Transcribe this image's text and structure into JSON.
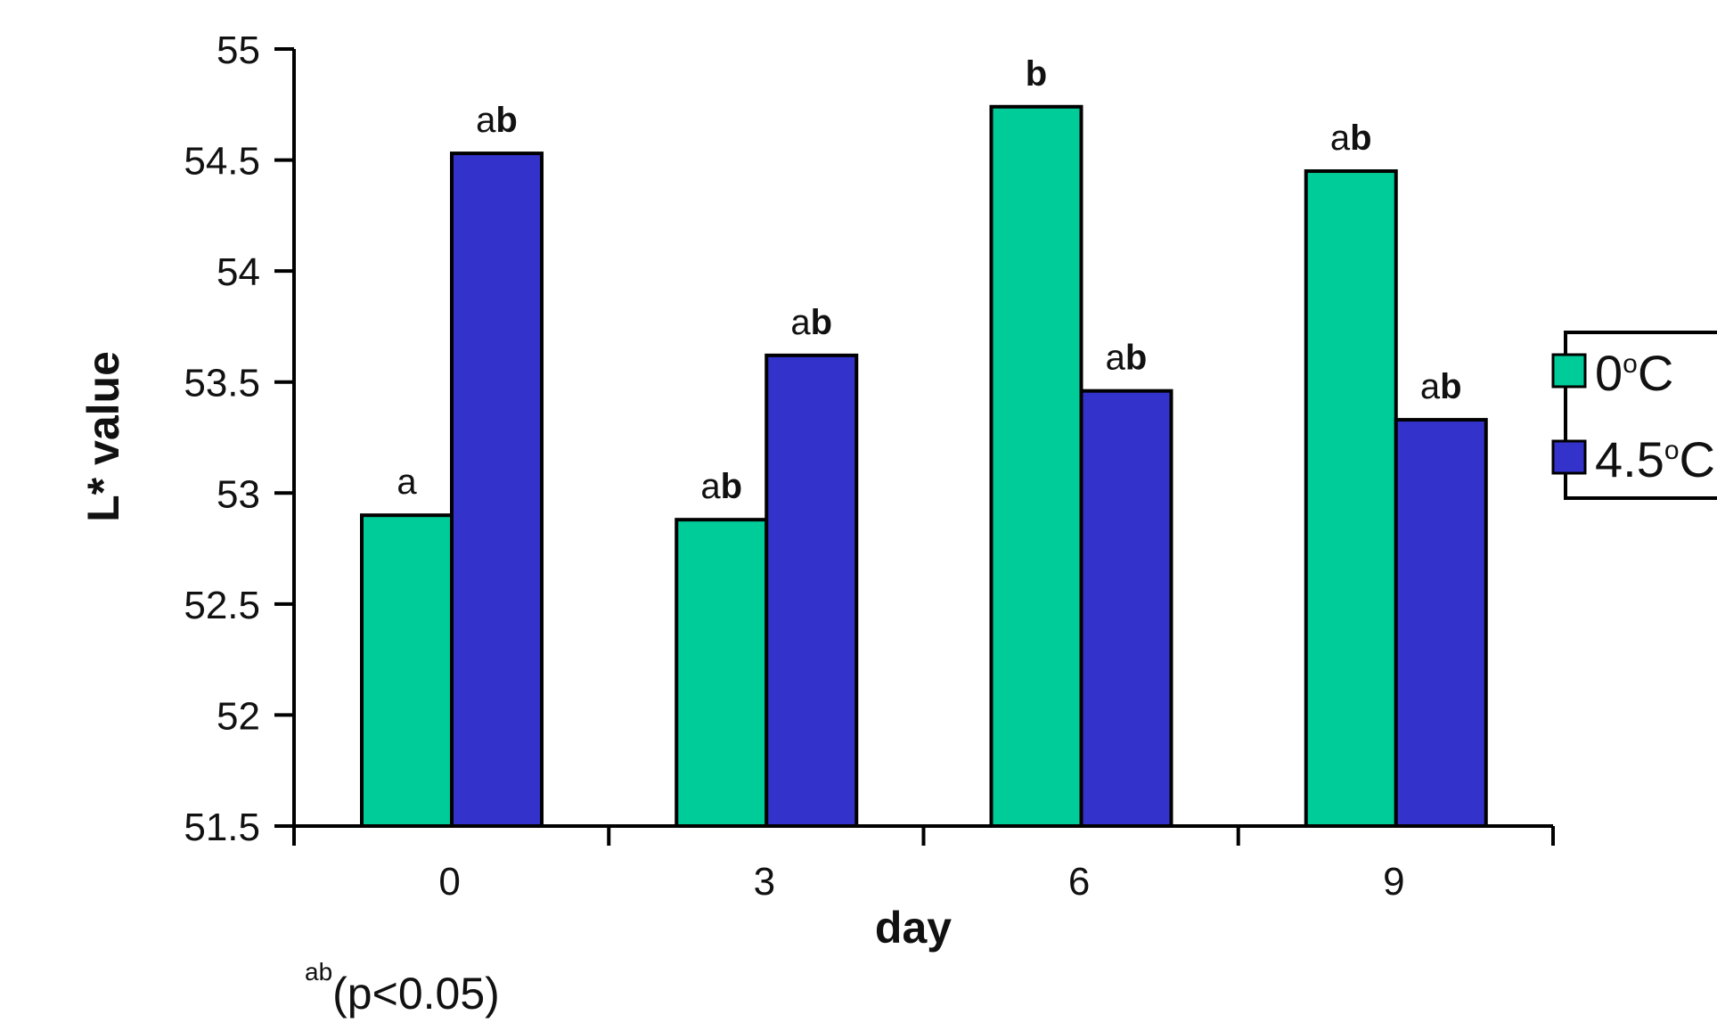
{
  "chart_data": {
    "type": "bar",
    "categories": [
      "0",
      "3",
      "6",
      "9"
    ],
    "series": [
      {
        "name": "0oC",
        "color": "#00CC99",
        "values": [
          52.9,
          52.88,
          54.74,
          54.45
        ]
      },
      {
        "name": "4.5oC",
        "color": "#3333CC",
        "values": [
          54.53,
          53.62,
          53.46,
          53.33
        ]
      }
    ],
    "significance_labels": [
      [
        {
          "plain": "a",
          "bold": ""
        },
        {
          "plain": "a",
          "bold": "b"
        }
      ],
      [
        {
          "plain": "a",
          "bold": "b"
        },
        {
          "plain": "a",
          "bold": "b"
        }
      ],
      [
        {
          "plain": "",
          "bold": "b"
        },
        {
          "plain": "a",
          "bold": "b"
        }
      ],
      [
        {
          "plain": "a",
          "bold": "b"
        },
        {
          "plain": "a",
          "bold": "b"
        }
      ]
    ],
    "xlabel": "day",
    "ylabel": "L* value",
    "ylim": [
      51.5,
      55
    ],
    "yticks": [
      "51.5",
      "52",
      "52.5",
      "53",
      "53.5",
      "54",
      "54.5",
      "55"
    ],
    "legend_position": "right",
    "grid": false
  },
  "legend": {
    "items": [
      {
        "prefix": "0",
        "degree": "o",
        "suffix": "C"
      },
      {
        "prefix": "4.5",
        "degree": "o",
        "suffix": "C"
      }
    ]
  },
  "footnote": {
    "superscript": "ab",
    "text": "(p<0.05)"
  }
}
